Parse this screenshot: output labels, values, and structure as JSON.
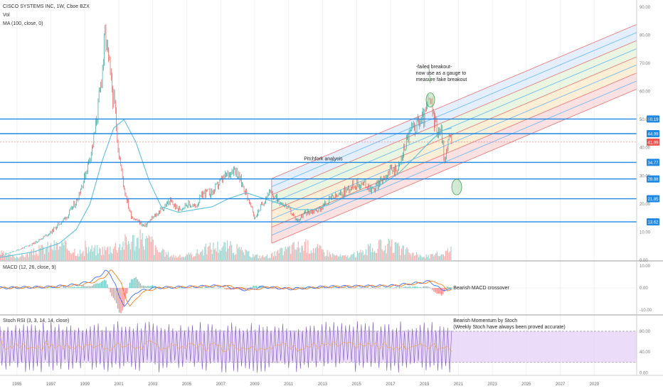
{
  "header": {
    "symbol_line": "CISCO SYSTEMS INC, 1W, Cboe BZX",
    "vol_label": "Vol",
    "ma_label": "MA (100, close, 0)",
    "macd_label": "MACD (12, 26, close, 9)",
    "stoch_label": "Stoch RSI (3, 3, 14, 14, close)"
  },
  "annotations": {
    "pitchfork": "Pitchfork analysis",
    "failed_1": "-failed breakout-",
    "failed_2": "now use as a gauge to",
    "failed_3": "measure fake breakout",
    "macd_note": "Bearish MACD crossover",
    "stoch_note_1": "Bearish Momentum by Stoch",
    "stoch_note_2": "(Weekly Stoch have always been proved accurate)"
  },
  "chart_data": {
    "type": "line",
    "price_axis": {
      "ticks": [
        "90.00",
        "80.00",
        "70.00",
        "60.00",
        "50.00",
        "40.00",
        "30.00",
        "20.00",
        "10.00",
        "0.00"
      ],
      "ylim": [
        0,
        92
      ]
    },
    "x_axis": {
      "ticks": [
        "1995",
        "1997",
        "1999",
        "2001",
        "2003",
        "2005",
        "2007",
        "2009",
        "2011",
        "2013",
        "2015",
        "2017",
        "2019",
        "2021",
        "2023",
        "2025",
        "2027",
        "2029"
      ],
      "xlim": [
        1994.0,
        2031.5
      ]
    },
    "price": {
      "x": [
        1994.0,
        1995.0,
        1996.0,
        1997.0,
        1998.0,
        1998.5,
        1999.0,
        1999.5,
        1999.9,
        2000.2,
        2000.5,
        2000.8,
        2001.0,
        2001.3,
        2001.7,
        2002.5,
        2003.0,
        2004.0,
        2004.5,
        2005.0,
        2005.5,
        2006.0,
        2006.5,
        2007.0,
        2007.8,
        2008.5,
        2009.0,
        2009.8,
        2010.3,
        2010.9,
        2011.5,
        2012.0,
        2012.8,
        2013.5,
        2014.0,
        2014.8,
        2015.5,
        2016.0,
        2016.8,
        2017.5,
        2018.0,
        2018.5,
        2019.0,
        2019.3,
        2019.7,
        2020.0,
        2020.2,
        2020.4,
        2020.6
      ],
      "y": [
        1.5,
        3.5,
        6,
        10,
        16,
        21,
        30,
        42,
        60,
        80,
        65,
        52,
        38,
        26,
        16,
        12,
        15,
        21,
        18,
        20,
        19,
        24,
        24,
        28,
        33,
        24,
        15,
        24,
        22,
        19,
        14,
        17,
        18,
        22,
        23,
        27,
        27,
        25,
        31,
        33,
        44,
        48,
        51,
        57,
        47,
        46,
        34,
        44,
        42
      ],
      "ma": {
        "x": [
          1994.0,
          1996.0,
          1997.5,
          1998.5,
          1999.3,
          2000.0,
          2000.7,
          2001.3,
          2002.0,
          2002.8,
          2003.5,
          2004.5,
          2005.5,
          2006.5,
          2007.5,
          2008.5,
          2009.5,
          2010.5,
          2011.5,
          2012.5,
          2013.5,
          2014.5,
          2015.5,
          2016.5,
          2017.5,
          2018.5,
          2019.3,
          2020.0,
          2020.6
        ],
        "y": [
          1,
          3,
          6,
          11,
          20,
          35,
          47,
          50,
          42,
          28,
          19,
          17,
          18,
          19,
          22,
          24,
          22,
          20,
          18,
          18,
          20,
          23,
          25,
          27,
          31,
          37,
          42,
          46,
          47
        ]
      },
      "last": "41.99"
    },
    "horizontal_levels": [
      "50.19",
      "44.99",
      "34.77",
      "28.88",
      "21.85",
      "13.62"
    ],
    "pitchfork": {
      "x_start": 2010.0,
      "x_end": 2031.5,
      "lower_left_y": 6,
      "upper_left_y": 29,
      "slope_per_year": 2.55,
      "lines": 9,
      "bands": [
        "#f7c9c9",
        "#fbe2b4",
        "#d8efc9",
        "#cfe2f7",
        "#e3d0f3"
      ]
    },
    "macd_axis": {
      "ticks": [
        "10.00",
        "0.00",
        "-10.00"
      ],
      "ylim": [
        -12,
        12
      ]
    },
    "macd": {
      "x": [
        1994.0,
        1997.0,
        1998.5,
        1999.3,
        1999.8,
        2000.2,
        2000.5,
        2000.8,
        2001.0,
        2001.3,
        2001.6,
        2002.0,
        2003.0,
        2005.0,
        2007.0,
        2008.5,
        2009.5,
        2011.0,
        2013.0,
        2015.0,
        2017.0,
        2018.3,
        2019.3,
        2019.7,
        2020.0,
        2020.3,
        2020.6
      ],
      "y": [
        0,
        0.5,
        1.5,
        3,
        5,
        8,
        6,
        2,
        -4,
        -8,
        -6,
        -2,
        0,
        0.5,
        1,
        -1,
        0.5,
        -0.5,
        0.5,
        0.8,
        1,
        2,
        3,
        1,
        -1,
        -0.5,
        -1
      ],
      "signal_shift": 0.35
    },
    "stoch_axis": {
      "ticks": [
        "80.00",
        "40.00",
        "0.00"
      ],
      "ylim": [
        -5,
        110
      ],
      "band": [
        20,
        80
      ]
    },
    "stoch": {
      "x_start": 1994.0,
      "x_end": 2020.6,
      "points": 230,
      "seed": 7
    },
    "volume": {
      "x_start": 1994.0,
      "x_end": 2020.6,
      "bars": 420,
      "seed": 3
    },
    "colors": {
      "up": "#26a69a",
      "down": "#ef5350",
      "ma": "#5bc0de",
      "level": "#1e88e5",
      "last_badge": "#ef5350",
      "macd": "#2962ff",
      "signal": "#ff6d00",
      "stoch_k": "#7e57c2",
      "stoch_d": "#ff9800",
      "stoch_band": "#e6d3f7"
    }
  }
}
